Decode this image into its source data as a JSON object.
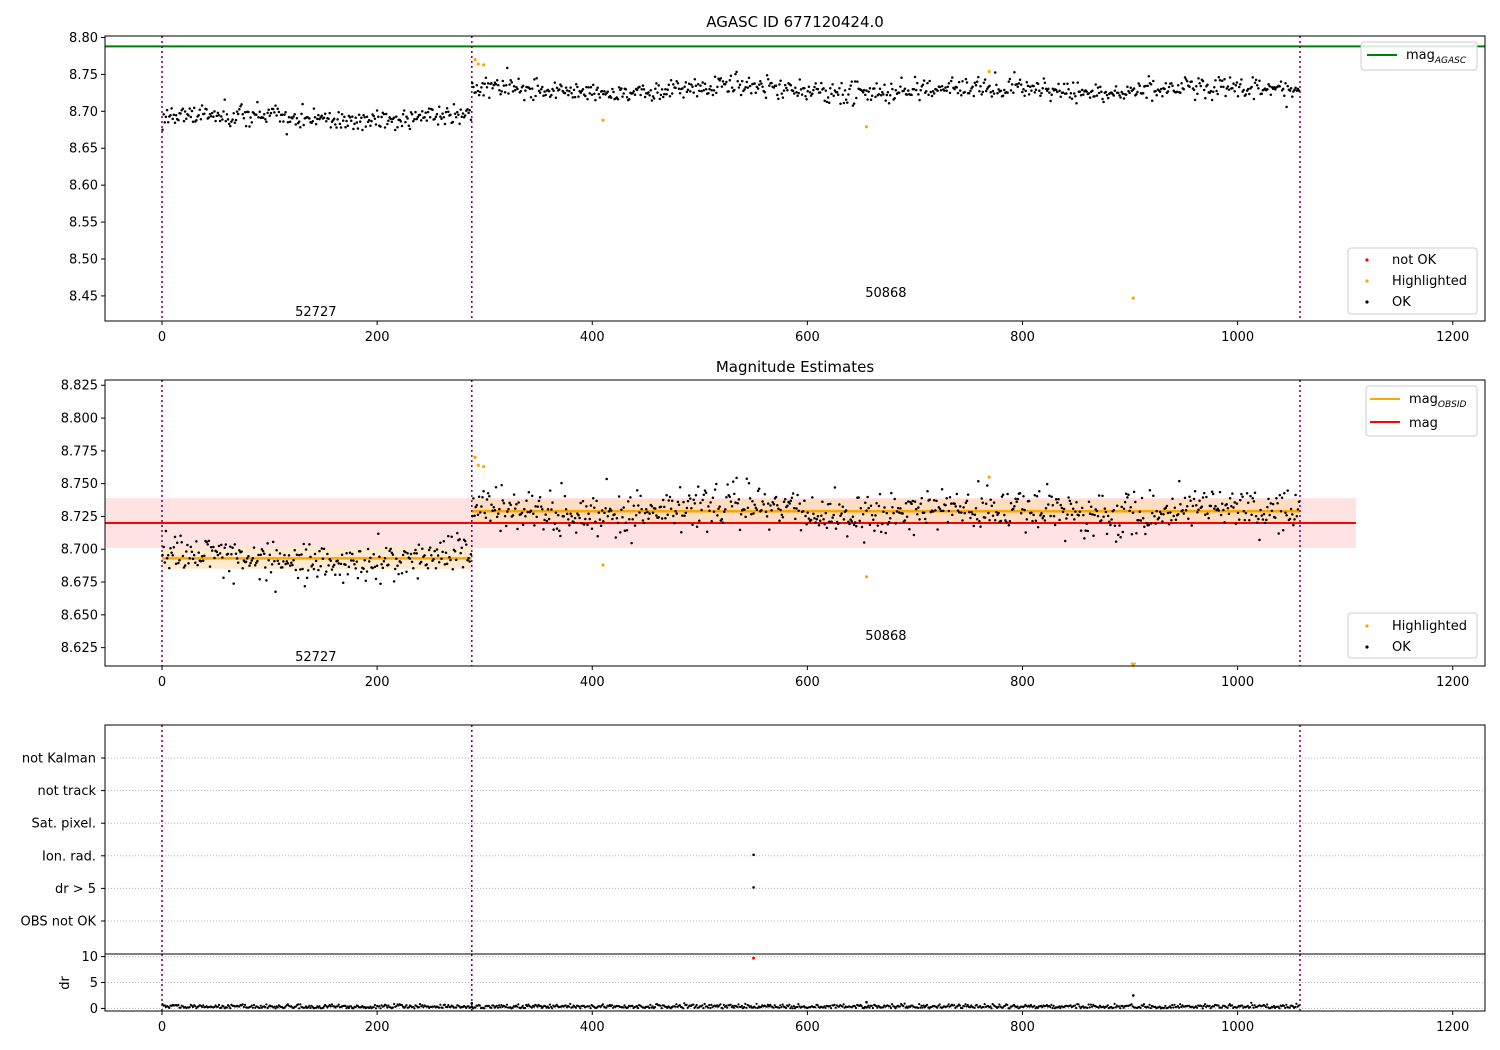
{
  "colors": {
    "ok": "#000000",
    "highlighted": "#ffa500",
    "not_ok": "#ff0000",
    "agasc_line": "#008000",
    "obsid_line": "#ffa500",
    "mag_line": "#ff0000",
    "mag_band": "#ffc0c0",
    "obsid_band": "#ffd8a8",
    "vline": "#800080",
    "grid": "#b0b0b0"
  },
  "chart_data": [
    {
      "type": "scatter",
      "title": "AGASC ID 677120424.0",
      "xlim": [
        -53,
        1230
      ],
      "ylim": [
        8.416,
        8.802
      ],
      "x_ticks": [
        0,
        200,
        400,
        600,
        800,
        1000,
        1200
      ],
      "y_ticks": [
        8.45,
        8.5,
        8.55,
        8.6,
        8.65,
        8.7,
        8.75,
        8.8
      ],
      "y_tick_labels": [
        "8.45",
        "8.50",
        "8.55",
        "8.60",
        "8.65",
        "8.70",
        "8.75",
        "8.80"
      ],
      "obsid_boundaries": [
        0,
        288,
        1058
      ],
      "obsid_labels": [
        {
          "text": "52727",
          "x": 143,
          "y": 8.428
        },
        {
          "text": "50868",
          "x": 673,
          "y": 8.454
        }
      ],
      "mag_agasc": 8.788,
      "segments": [
        {
          "x0": 0,
          "x1": 288,
          "mean": 8.692,
          "std": 0.008
        },
        {
          "x0": 288,
          "x1": 1058,
          "mean": 8.729,
          "std": 0.008
        }
      ],
      "highlighted": [
        {
          "x": 291,
          "y": 8.77
        },
        {
          "x": 294,
          "y": 8.764
        },
        {
          "x": 299,
          "y": 8.763
        },
        {
          "x": 410,
          "y": 8.688
        },
        {
          "x": 655,
          "y": 8.679
        },
        {
          "x": 769,
          "y": 8.754
        },
        {
          "x": 903,
          "y": 8.447
        }
      ],
      "not_ok": [],
      "legend_lines": [
        {
          "label": "mag",
          "sub": "AGASC"
        }
      ],
      "legend_points": [
        "not OK",
        "Highlighted",
        "OK"
      ]
    },
    {
      "type": "scatter",
      "title": "Magnitude Estimates",
      "xlim": [
        -53,
        1230
      ],
      "ylim": [
        8.611,
        8.829
      ],
      "x_ticks": [
        0,
        200,
        400,
        600,
        800,
        1000,
        1200
      ],
      "y_ticks": [
        8.625,
        8.65,
        8.675,
        8.7,
        8.725,
        8.75,
        8.775,
        8.8,
        8.825
      ],
      "y_tick_labels": [
        "8.625",
        "8.650",
        "8.675",
        "8.700",
        "8.725",
        "8.750",
        "8.775",
        "8.800",
        "8.825"
      ],
      "obsid_boundaries": [
        0,
        288,
        1058
      ],
      "obsid_labels": [
        {
          "text": "52727",
          "x": 143,
          "y": 8.618
        },
        {
          "text": "50868",
          "x": 673,
          "y": 8.634
        }
      ],
      "mag": 8.72,
      "mag_std": 0.019,
      "mag_xrange": [
        -53,
        1110
      ],
      "segments": [
        {
          "x0": 0,
          "x1": 288,
          "mean": 8.693,
          "std": 0.008
        },
        {
          "x0": 288,
          "x1": 1058,
          "mean": 8.729,
          "std": 0.009
        }
      ],
      "highlighted": [
        {
          "x": 291,
          "y": 8.77
        },
        {
          "x": 294,
          "y": 8.764
        },
        {
          "x": 299,
          "y": 8.763
        },
        {
          "x": 410,
          "y": 8.688
        },
        {
          "x": 655,
          "y": 8.679
        },
        {
          "x": 769,
          "y": 8.755
        }
      ],
      "offscale_marker": {
        "x": 903,
        "y": 8.612
      },
      "legend_lines": [
        {
          "label": "mag",
          "sub": "OBSID"
        },
        {
          "label": "mag",
          "sub": ""
        }
      ],
      "legend_points": [
        "Highlighted",
        "OK"
      ]
    },
    {
      "type": "scatter",
      "xlim": [
        -53,
        1230
      ],
      "obsid_boundaries": [
        0,
        288,
        1058
      ],
      "flag_rows": [
        "not Kalman",
        "not track",
        "Sat. pixel.",
        "Ion. rad.",
        "dr > 5",
        "OBS not OK"
      ],
      "flag_points": [
        {
          "x": 550,
          "row": "Ion. rad."
        },
        {
          "x": 550,
          "row": "dr > 5"
        }
      ]
    },
    {
      "type": "scatter",
      "xlim": [
        -53,
        1230
      ],
      "ylim": [
        -0.5,
        10.5
      ],
      "ylabel": "dr",
      "x_ticks": [
        0,
        200,
        400,
        600,
        800,
        1000,
        1200
      ],
      "y_ticks": [
        0,
        5,
        10
      ],
      "y_tick_labels": [
        "0",
        "5",
        "10"
      ],
      "obsid_boundaries": [
        0,
        288,
        1058
      ],
      "not_ok": [
        {
          "x": 550,
          "y": 9.7
        }
      ],
      "outliers": [
        {
          "x": 655,
          "y": 1.2
        },
        {
          "x": 903,
          "y": 2.5
        },
        {
          "x": 288,
          "y": 1.0
        }
      ]
    }
  ]
}
